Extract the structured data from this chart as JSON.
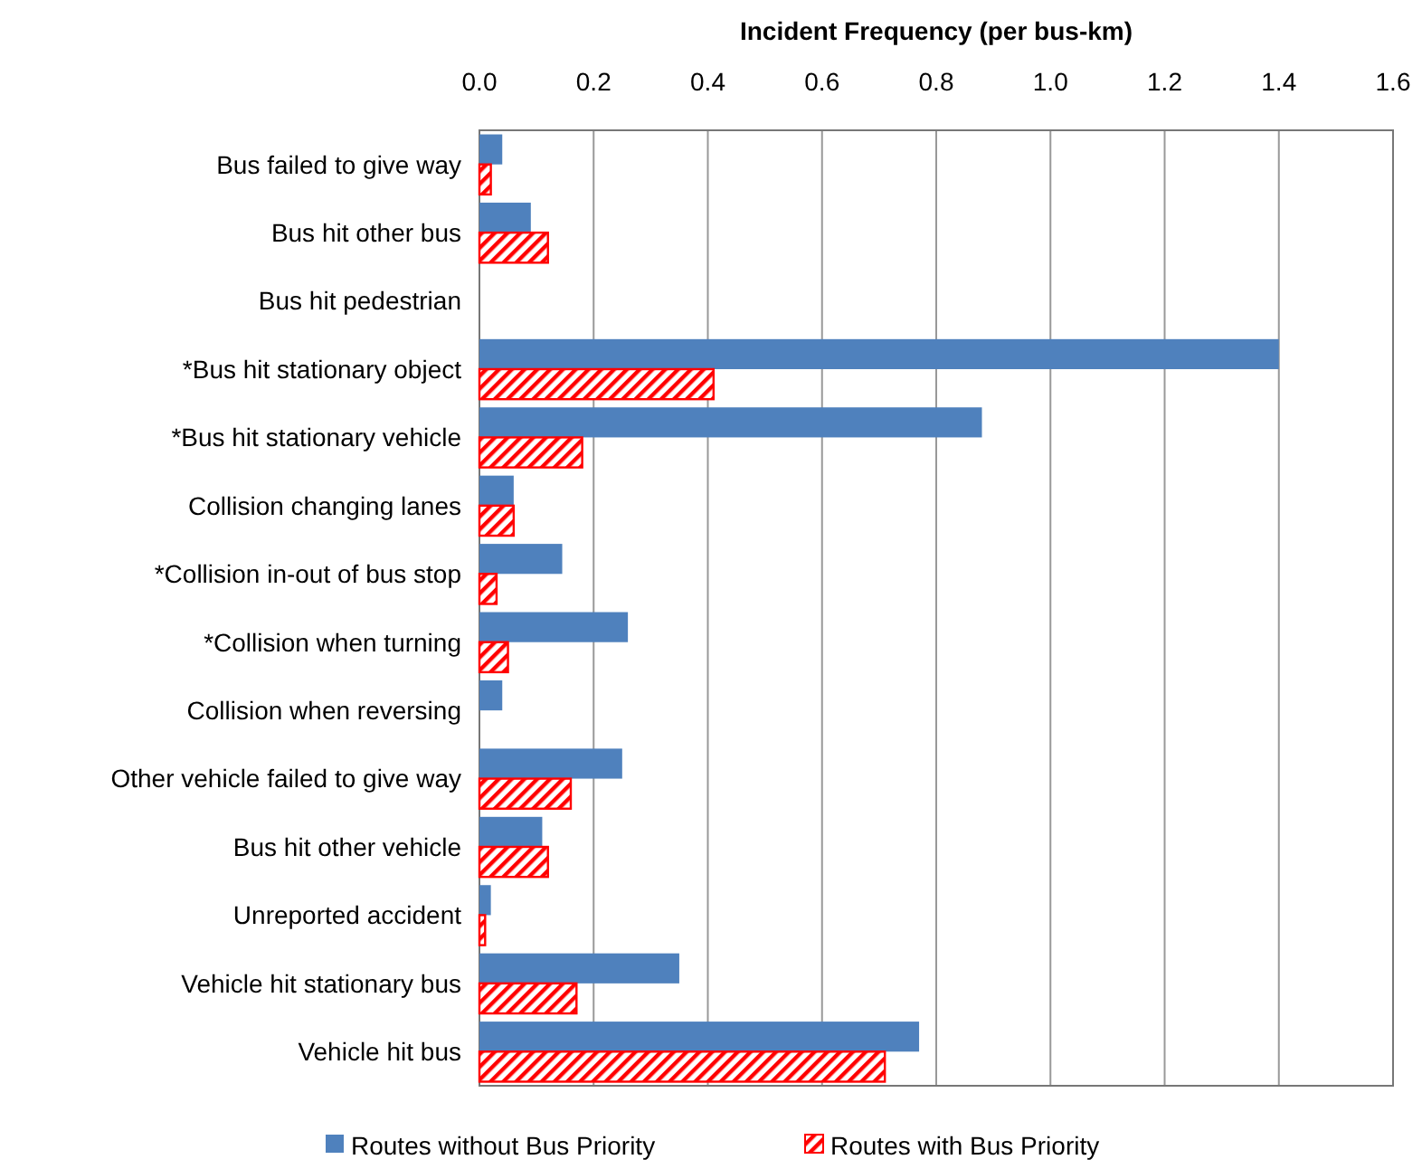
{
  "chart_data": {
    "type": "bar",
    "orientation": "horizontal",
    "xlabel": "Incident Frequency (per bus-km)",
    "categories": [
      "Bus failed to give way",
      "Bus hit other bus",
      "Bus hit pedestrian",
      "*Bus hit stationary object",
      "*Bus hit stationary vehicle",
      "Collision changing lanes",
      "*Collision in-out of bus stop",
      "*Collision when turning",
      "Collision when reversing",
      "Other vehicle failed to give way",
      "Bus hit other vehicle",
      "Unreported accident",
      "Vehicle hit stationary bus",
      "Vehicle hit bus"
    ],
    "series": [
      {
        "name": "Routes without Bus Priority",
        "color": "#4f81bd",
        "values": [
          0.04,
          0.09,
          0,
          1.4,
          0.88,
          0.06,
          0.145,
          0.26,
          0.04,
          0.25,
          0.11,
          0.02,
          0.35,
          0.77
        ]
      },
      {
        "name": "Routes with Bus Priority",
        "color": "#ff0000",
        "values": [
          0.02,
          0.12,
          0,
          0.41,
          0.18,
          0.06,
          0.03,
          0.05,
          0,
          0.16,
          0.12,
          0.01,
          0.17,
          0.71
        ]
      }
    ],
    "xlim": [
      0,
      1.6
    ],
    "xticks": [
      {
        "value": 0,
        "label": "0.0"
      },
      0.2,
      0.4,
      0.6,
      0.8,
      {
        "value": 1,
        "label": "1.0"
      },
      1.2,
      1.4,
      1.6
    ],
    "grid": "x",
    "legend": "bottom"
  }
}
